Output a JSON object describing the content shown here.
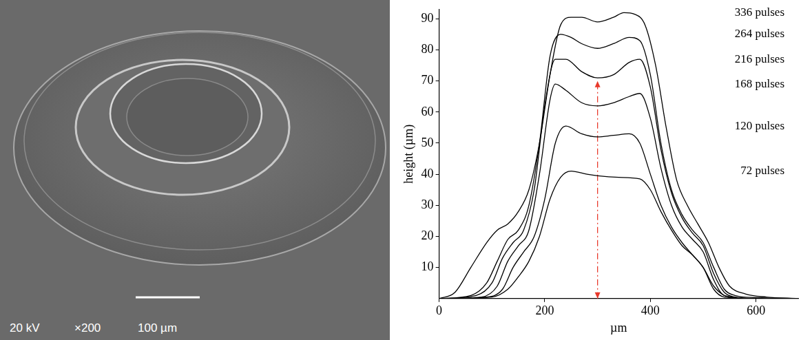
{
  "micrograph": {
    "voltage": "20 kV",
    "magnification": "×200",
    "scale_bar": "100 µm"
  },
  "chart_data": {
    "type": "line",
    "x_label": "µm",
    "y_label": "height (µm)",
    "xlim": [
      0,
      680
    ],
    "xticks": [
      0,
      200,
      400,
      600
    ],
    "ylim": [
      0,
      93
    ],
    "yticks": [
      10,
      20,
      30,
      40,
      50,
      60,
      70,
      80,
      90
    ],
    "grid": false,
    "series": [
      {
        "name": "336 pulses",
        "color": "#000000",
        "x": [
          0,
          30,
          60,
          90,
          110,
          130,
          150,
          170,
          190,
          210,
          230,
          250,
          270,
          300,
          330,
          350,
          370,
          390,
          410,
          430,
          450,
          470,
          490,
          510,
          530,
          550,
          580,
          620,
          680
        ],
        "values": [
          0,
          2,
          10,
          18,
          22,
          24,
          28,
          35,
          50,
          72,
          88,
          90.5,
          90.5,
          89,
          90.5,
          92,
          91.5,
          88,
          75,
          55,
          38,
          30,
          24,
          18,
          10,
          4,
          1.5,
          0.5,
          0
        ]
      },
      {
        "name": "264 pulses",
        "color": "#000000",
        "x": [
          0,
          60,
          90,
          110,
          130,
          150,
          170,
          190,
          210,
          230,
          250,
          270,
          300,
          330,
          360,
          380,
          400,
          420,
          440,
          460,
          480,
          500,
          520,
          540,
          560,
          600,
          680
        ],
        "values": [
          0,
          1,
          5,
          12,
          19,
          22,
          30,
          50,
          78,
          85,
          84,
          82,
          80.5,
          82,
          84,
          83,
          72,
          50,
          35,
          27,
          22,
          18,
          10,
          3,
          1,
          0.3,
          0
        ]
      },
      {
        "name": "216 pulses",
        "color": "#000000",
        "x": [
          0,
          70,
          100,
          120,
          140,
          160,
          180,
          200,
          220,
          240,
          270,
          300,
          330,
          360,
          380,
          400,
          420,
          440,
          460,
          480,
          500,
          520,
          540,
          560,
          600,
          680
        ],
        "values": [
          0,
          1,
          5,
          13,
          18,
          22,
          35,
          62,
          77,
          77,
          73,
          71,
          72,
          76,
          77,
          68,
          48,
          34,
          26,
          21,
          17,
          8,
          2,
          0.5,
          0,
          0
        ]
      },
      {
        "name": "168 pulses",
        "color": "#000000",
        "x": [
          0,
          80,
          110,
          130,
          150,
          170,
          190,
          210,
          220,
          240,
          270,
          300,
          330,
          360,
          380,
          400,
          420,
          440,
          460,
          480,
          500,
          520,
          540,
          600,
          680
        ],
        "values": [
          0,
          0.5,
          4,
          12,
          17,
          22,
          40,
          64,
          69,
          67,
          63,
          62,
          63,
          65,
          66,
          58,
          42,
          30,
          23,
          19,
          15,
          6,
          1,
          0,
          0
        ]
      },
      {
        "name": "120 pulses",
        "color": "#000000",
        "x": [
          0,
          90,
          120,
          140,
          160,
          180,
          200,
          220,
          240,
          270,
          300,
          330,
          360,
          380,
          400,
          420,
          440,
          460,
          480,
          500,
          520,
          540,
          600,
          680
        ],
        "values": [
          0,
          0.5,
          3,
          10,
          15,
          20,
          32,
          50,
          55.5,
          53,
          52,
          52.5,
          53,
          50,
          40,
          30,
          23,
          18,
          14,
          10,
          3,
          0.5,
          0,
          0
        ]
      },
      {
        "name": "72 pulses",
        "color": "#000000",
        "x": [
          0,
          100,
          130,
          150,
          170,
          190,
          210,
          230,
          250,
          280,
          300,
          340,
          380,
          400,
          420,
          440,
          460,
          480,
          500,
          520,
          540,
          560,
          600,
          680
        ],
        "values": [
          0,
          0.5,
          3,
          7,
          12,
          20,
          32,
          39,
          41,
          40,
          39.5,
          39,
          38.5,
          35,
          28,
          22,
          17,
          14,
          10,
          4,
          1,
          0.3,
          0,
          0
        ]
      }
    ],
    "arrows": [
      {
        "x": [
          300,
          300
        ],
        "values": [
          0,
          70
        ],
        "color": "#e8392b",
        "line_style": "dashdot"
      }
    ]
  }
}
